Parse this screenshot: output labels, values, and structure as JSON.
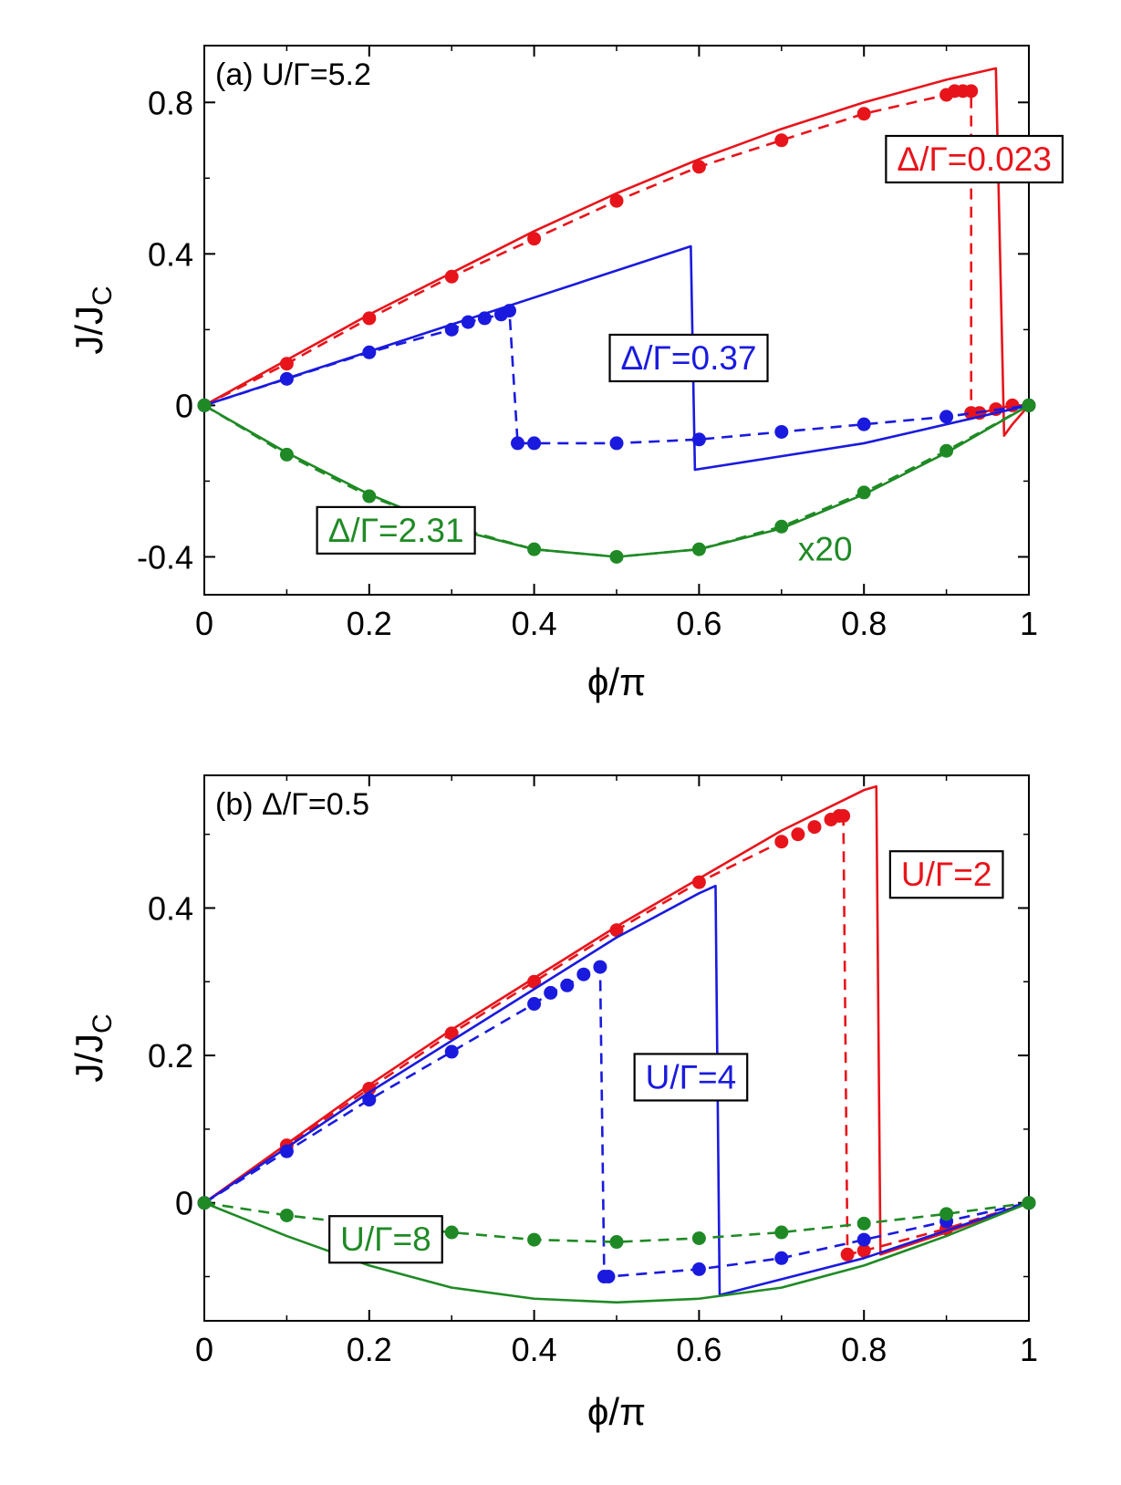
{
  "colors": {
    "red": "#e8141b",
    "blue": "#1a1adf",
    "green": "#1f8a25",
    "axis": "#000000"
  },
  "chart_data": [
    {
      "panel": "a",
      "type": "line",
      "title": "(a) U/Γ=5.2",
      "xlabel": "ϕ/π",
      "ylabel": "J/J",
      "ylabel_sub": "C",
      "xlim": [
        0,
        1
      ],
      "ylim": [
        -0.5,
        0.95
      ],
      "xticks": [
        0,
        0.2,
        0.4,
        0.6,
        0.8,
        1
      ],
      "xtick_labels": [
        "0",
        "0.2",
        "0.4",
        "0.6",
        "0.8",
        "1"
      ],
      "xminor": [
        0.1,
        0.3,
        0.5,
        0.7,
        0.9
      ],
      "yticks": [
        -0.4,
        0,
        0.4,
        0.8
      ],
      "ytick_labels": [
        "-0.4",
        "0",
        "0.4",
        "0.8"
      ],
      "yminor": [
        -0.2,
        0.2,
        0.6
      ],
      "series": [
        {
          "name": "Δ/Γ=0.023",
          "color": "red",
          "style": "solid",
          "x": [
            0,
            0.1,
            0.2,
            0.3,
            0.4,
            0.5,
            0.6,
            0.7,
            0.8,
            0.9,
            0.96,
            0.97,
            0.98,
            1
          ],
          "y": [
            0,
            0.12,
            0.24,
            0.35,
            0.46,
            0.56,
            0.65,
            0.73,
            0.8,
            0.86,
            0.89,
            -0.08,
            -0.05,
            0
          ]
        },
        {
          "name": "Δ/Γ=0.023 points",
          "color": "red",
          "style": "dashed",
          "markers": true,
          "x": [
            0,
            0.1,
            0.2,
            0.3,
            0.4,
            0.5,
            0.6,
            0.7,
            0.8,
            0.9,
            0.91,
            0.92,
            0.93,
            0.93,
            0.94,
            0.96,
            0.98,
            1
          ],
          "y": [
            0,
            0.11,
            0.23,
            0.34,
            0.44,
            0.54,
            0.63,
            0.7,
            0.77,
            0.82,
            0.83,
            0.83,
            0.83,
            -0.02,
            -0.02,
            -0.01,
            0,
            0
          ]
        },
        {
          "name": "Δ/Γ=0.37",
          "color": "blue",
          "style": "solid",
          "x": [
            0,
            0.59,
            0.595,
            0.8,
            1
          ],
          "y": [
            0,
            0.42,
            -0.17,
            -0.1,
            0
          ]
        },
        {
          "name": "Δ/Γ=0.37 points",
          "color": "blue",
          "style": "dashed",
          "markers": true,
          "x": [
            0,
            0.1,
            0.2,
            0.3,
            0.32,
            0.34,
            0.36,
            0.37,
            0.38,
            0.4,
            0.5,
            0.6,
            0.7,
            0.8,
            0.9,
            1
          ],
          "y": [
            0,
            0.07,
            0.14,
            0.2,
            0.22,
            0.23,
            0.24,
            0.25,
            -0.1,
            -0.1,
            -0.1,
            -0.09,
            -0.07,
            -0.05,
            -0.03,
            0
          ]
        },
        {
          "name": "Δ/Γ=2.31",
          "color": "green",
          "style": "solid",
          "x": [
            0,
            0.1,
            0.2,
            0.3,
            0.4,
            0.5,
            0.6,
            0.7,
            0.8,
            0.9,
            1
          ],
          "y": [
            0,
            -0.125,
            -0.235,
            -0.325,
            -0.38,
            -0.4,
            -0.38,
            -0.325,
            -0.235,
            -0.125,
            0
          ]
        },
        {
          "name": "Δ/Γ=2.31 points",
          "color": "green",
          "style": "dashed",
          "markers": true,
          "x": [
            0,
            0.1,
            0.2,
            0.3,
            0.4,
            0.5,
            0.6,
            0.7,
            0.8,
            0.9,
            1
          ],
          "y": [
            0,
            -0.13,
            -0.24,
            -0.32,
            -0.38,
            -0.4,
            -0.38,
            -0.32,
            -0.23,
            -0.12,
            0
          ]
        }
      ],
      "labels": [
        {
          "text": "Δ/Γ=0.023",
          "color": "red",
          "boxed": true,
          "x": 0.84,
          "y": 0.62
        },
        {
          "text": "Δ/Γ=0.37",
          "color": "blue",
          "boxed": true,
          "x": 0.505,
          "y": 0.095
        },
        {
          "text": "Δ/Γ=2.31",
          "color": "green",
          "boxed": true,
          "x": 0.15,
          "y": -0.36
        },
        {
          "text": "x20",
          "color": "green",
          "boxed": false,
          "x": 0.72,
          "y": -0.41
        }
      ]
    },
    {
      "panel": "b",
      "type": "line",
      "title": "(b) Δ/Γ=0.5",
      "xlabel": "ϕ/π",
      "ylabel": "J/J",
      "ylabel_sub": "C",
      "xlim": [
        0,
        1
      ],
      "ylim": [
        -0.16,
        0.58
      ],
      "xticks": [
        0,
        0.2,
        0.4,
        0.6,
        0.8,
        1
      ],
      "xtick_labels": [
        "0",
        "0.2",
        "0.4",
        "0.6",
        "0.8",
        "1"
      ],
      "xminor": [
        0.1,
        0.3,
        0.5,
        0.7,
        0.9
      ],
      "yticks": [
        0,
        0.2,
        0.4
      ],
      "ytick_labels": [
        "0",
        "0.2",
        "0.4"
      ],
      "yminor": [
        -0.1,
        0.1,
        0.3,
        0.5
      ],
      "series": [
        {
          "name": "U/Γ=2",
          "color": "red",
          "style": "solid",
          "x": [
            0,
            0.1,
            0.2,
            0.3,
            0.4,
            0.5,
            0.6,
            0.7,
            0.8,
            0.815,
            0.82,
            0.9,
            1
          ],
          "y": [
            0,
            0.08,
            0.16,
            0.235,
            0.305,
            0.375,
            0.44,
            0.505,
            0.56,
            0.565,
            -0.07,
            -0.04,
            0
          ]
        },
        {
          "name": "U/Γ=2 points",
          "color": "red",
          "style": "dashed",
          "markers": true,
          "x": [
            0,
            0.1,
            0.2,
            0.3,
            0.4,
            0.5,
            0.6,
            0.7,
            0.72,
            0.74,
            0.76,
            0.77,
            0.775,
            0.78,
            0.8,
            0.9,
            1
          ],
          "y": [
            0,
            0.078,
            0.155,
            0.23,
            0.3,
            0.37,
            0.435,
            0.49,
            0.5,
            0.51,
            0.52,
            0.525,
            0.525,
            -0.07,
            -0.065,
            -0.035,
            0
          ]
        },
        {
          "name": "U/Γ=4",
          "color": "blue",
          "style": "solid",
          "x": [
            0,
            0.1,
            0.2,
            0.3,
            0.4,
            0.5,
            0.6,
            0.62,
            0.625,
            0.8,
            1
          ],
          "y": [
            0,
            0.075,
            0.15,
            0.22,
            0.29,
            0.36,
            0.42,
            0.43,
            -0.125,
            -0.075,
            0
          ]
        },
        {
          "name": "U/Γ=4 points",
          "color": "blue",
          "style": "dashed",
          "markers": true,
          "x": [
            0,
            0.1,
            0.2,
            0.3,
            0.4,
            0.42,
            0.44,
            0.46,
            0.48,
            0.485,
            0.49,
            0.6,
            0.7,
            0.8,
            0.9,
            1
          ],
          "y": [
            0,
            0.07,
            0.14,
            0.205,
            0.27,
            0.285,
            0.295,
            0.31,
            0.32,
            -0.1,
            -0.1,
            -0.09,
            -0.075,
            -0.05,
            -0.025,
            0
          ]
        },
        {
          "name": "U/Γ=8",
          "color": "green",
          "style": "solid",
          "x": [
            0,
            0.1,
            0.2,
            0.3,
            0.4,
            0.5,
            0.6,
            0.7,
            0.8,
            0.9,
            1
          ],
          "y": [
            0,
            -0.045,
            -0.085,
            -0.115,
            -0.13,
            -0.135,
            -0.13,
            -0.115,
            -0.085,
            -0.045,
            0
          ]
        },
        {
          "name": "U/Γ=8 points",
          "color": "green",
          "style": "dashed",
          "markers": true,
          "x": [
            0,
            0.1,
            0.2,
            0.3,
            0.4,
            0.5,
            0.6,
            0.7,
            0.8,
            0.9,
            1
          ],
          "y": [
            0,
            -0.017,
            -0.03,
            -0.04,
            -0.05,
            -0.053,
            -0.048,
            -0.04,
            -0.028,
            -0.015,
            0
          ]
        }
      ],
      "labels": [
        {
          "text": "U/Γ=2",
          "color": "red",
          "boxed": true,
          "x": 0.845,
          "y": 0.43
        },
        {
          "text": "U/Γ=4",
          "color": "blue",
          "boxed": true,
          "x": 0.535,
          "y": 0.155
        },
        {
          "text": "U/Γ=8",
          "color": "green",
          "boxed": true,
          "x": 0.165,
          "y": -0.065
        }
      ]
    }
  ]
}
